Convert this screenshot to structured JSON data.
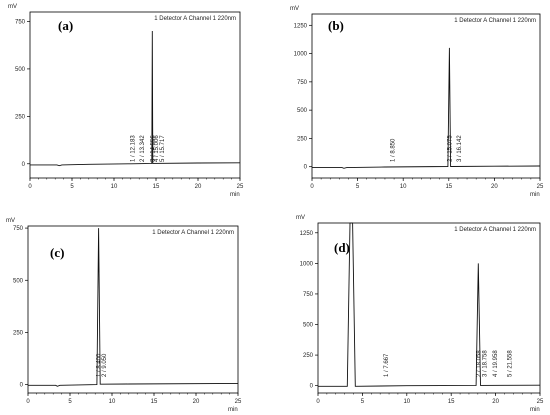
{
  "chart_data": [
    {
      "panel_label": "(a)",
      "type": "line",
      "ylabel": "mV",
      "xlabel": "min",
      "legend": "1 Detector A Channel 1 220nm",
      "xlim": [
        0,
        25
      ],
      "ylim": [
        -75,
        800
      ],
      "xticks": [
        0,
        5,
        10,
        15,
        20,
        25
      ],
      "yticks": [
        0,
        250,
        500,
        750
      ],
      "trace": [
        [
          0,
          -6
        ],
        [
          3.2,
          -6
        ],
        [
          3.5,
          -10
        ],
        [
          3.8,
          -6
        ],
        [
          7,
          -3
        ],
        [
          12,
          0
        ],
        [
          14.5,
          2
        ],
        [
          14.56,
          700
        ],
        [
          14.62,
          2
        ],
        [
          20,
          4
        ],
        [
          25,
          5
        ]
      ],
      "peak_labels": [
        "1 / 12.183",
        "2 / 13.342",
        "3 / 14.556",
        "4 / 15.006",
        "5 / 15.717"
      ],
      "peak_times": [
        12.183,
        13.342,
        14.556,
        15.006,
        15.717
      ]
    },
    {
      "panel_label": "(b)",
      "type": "line",
      "ylabel": "mV",
      "xlabel": "min",
      "legend": "1 Detector A Channel 1 220nm",
      "xlim": [
        0,
        25
      ],
      "ylim": [
        -100,
        1350
      ],
      "xticks": [
        0,
        5,
        10,
        15,
        20,
        25
      ],
      "yticks": [
        0,
        250,
        500,
        750,
        1000,
        1250
      ],
      "trace": [
        [
          0,
          -8
        ],
        [
          3.3,
          -8
        ],
        [
          3.5,
          -14
        ],
        [
          3.8,
          -8
        ],
        [
          8,
          -3
        ],
        [
          14.9,
          2
        ],
        [
          15.07,
          1050
        ],
        [
          15.2,
          2
        ],
        [
          20,
          4
        ],
        [
          25,
          6
        ]
      ],
      "peak_labels": [
        "1 / 8.850",
        "2 / 15.075",
        "3 / 16.142"
      ],
      "peak_times": [
        8.85,
        15.075,
        16.142
      ]
    },
    {
      "panel_label": "(c)",
      "type": "line",
      "ylabel": "mV",
      "xlabel": "min",
      "legend": "1 Detector A Channel 1 220nm",
      "xlim": [
        0,
        25
      ],
      "ylim": [
        -40,
        760
      ],
      "xticks": [
        0,
        5,
        10,
        15,
        20,
        25
      ],
      "yticks": [
        0,
        250,
        500,
        750
      ],
      "trace": [
        [
          0,
          -3
        ],
        [
          3.3,
          -3
        ],
        [
          3.5,
          -8
        ],
        [
          3.8,
          -3
        ],
        [
          8.2,
          0
        ],
        [
          8.4,
          750
        ],
        [
          8.6,
          2
        ],
        [
          12,
          3
        ],
        [
          25,
          6
        ]
      ],
      "peak_labels": [
        "1 / 8.400",
        "2 / 9.050"
      ],
      "peak_times": [
        8.4,
        9.05
      ]
    },
    {
      "panel_label": "(d)",
      "type": "line",
      "ylabel": "mV",
      "xlabel": "min",
      "legend": "1 Detector A Channel 1 220nm",
      "xlim": [
        0,
        25
      ],
      "ylim": [
        -60,
        1330
      ],
      "xticks": [
        0,
        5,
        10,
        15,
        20,
        25
      ],
      "yticks": [
        0,
        250,
        500,
        750,
        1000,
        1250
      ],
      "trace": [
        [
          0,
          -5
        ],
        [
          3.3,
          -5
        ],
        [
          3.6,
          1330
        ],
        [
          3.9,
          1330
        ],
        [
          4.2,
          -5
        ],
        [
          10,
          0
        ],
        [
          17.8,
          2
        ],
        [
          18.05,
          1000
        ],
        [
          18.3,
          2
        ],
        [
          21,
          3
        ],
        [
          25,
          4
        ]
      ],
      "peak_labels": [
        "1 / 7.667",
        "2 / 18.058",
        "3 / 18.758",
        "4 / 19.958",
        "5 / 21.558"
      ],
      "peak_times": [
        7.667,
        18.058,
        18.758,
        19.958,
        21.558
      ]
    }
  ]
}
